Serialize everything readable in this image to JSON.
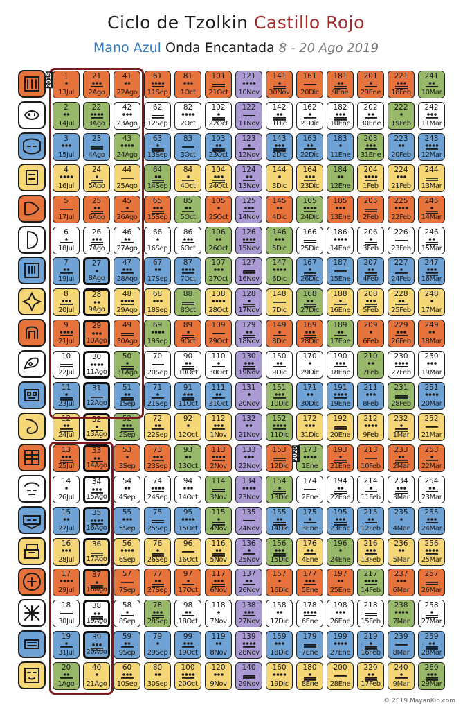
{
  "header": {
    "title_black": "Ciclo de Tzolkin",
    "title_red": "Castillo Rojo",
    "subtitle_blue": "Mano Azul",
    "subtitle_black": "Onda Encantada",
    "subtitle_dates": "8 - 20 Ago 2019"
  },
  "colors": {
    "red": "#e6733c",
    "white": "#ffffff",
    "blue": "#6fa3d6",
    "yellow": "#f6d777",
    "green": "#98b96a",
    "purple": "#a99ad3",
    "frame": "#7a1a1f"
  },
  "seals": [
    {
      "name": "Dragón",
      "color": "red",
      "icon": "dragon-icon"
    },
    {
      "name": "Viento",
      "color": "white",
      "icon": "wind-icon"
    },
    {
      "name": "Noche",
      "color": "blue",
      "icon": "night-icon"
    },
    {
      "name": "Semilla",
      "color": "yellow",
      "icon": "seed-icon"
    },
    {
      "name": "Serpiente",
      "color": "red",
      "icon": "serpent-icon"
    },
    {
      "name": "Enlazador",
      "color": "white",
      "icon": "worldbridger-icon"
    },
    {
      "name": "Mano",
      "color": "blue",
      "icon": "hand-icon"
    },
    {
      "name": "Estrella",
      "color": "yellow",
      "icon": "star-icon"
    },
    {
      "name": "Luna",
      "color": "red",
      "icon": "moon-icon"
    },
    {
      "name": "Perro",
      "color": "white",
      "icon": "dog-icon"
    },
    {
      "name": "Mono",
      "color": "blue",
      "icon": "monkey-icon"
    },
    {
      "name": "Humano",
      "color": "yellow",
      "icon": "human-icon"
    },
    {
      "name": "Caminante",
      "color": "red",
      "icon": "skywalker-icon"
    },
    {
      "name": "Mago",
      "color": "white",
      "icon": "wizard-icon"
    },
    {
      "name": "Águila",
      "color": "blue",
      "icon": "eagle-icon"
    },
    {
      "name": "Guerrero",
      "color": "yellow",
      "icon": "warrior-icon"
    },
    {
      "name": "Tierra",
      "color": "red",
      "icon": "earth-icon"
    },
    {
      "name": "Espejo",
      "color": "white",
      "icon": "mirror-icon"
    },
    {
      "name": "Tormenta",
      "color": "blue",
      "icon": "storm-icon"
    },
    {
      "name": "Sol",
      "color": "yellow",
      "icon": "sun-icon"
    }
  ],
  "column_colors": [
    [
      "seal",
      "green",
      "seal",
      "seal",
      "seal",
      "seal",
      "seal",
      "seal",
      "seal",
      "seal",
      "seal",
      "seal",
      "seal",
      "seal",
      "seal",
      "seal",
      "seal",
      "seal",
      "seal",
      "green"
    ],
    [
      "seal",
      "green",
      "seal",
      "seal",
      "seal",
      "seal",
      "seal",
      "seal",
      "seal",
      "seal",
      "seal",
      "seal",
      "seal",
      "seal",
      "seal",
      "seal",
      "seal",
      "seal",
      "seal",
      "seal"
    ],
    [
      "seal",
      "seal",
      "green",
      "seal",
      "seal",
      "seal",
      "seal",
      "seal",
      "seal",
      "green",
      "seal",
      "green",
      "seal",
      "seal",
      "seal",
      "seal",
      "seal",
      "seal",
      "seal",
      "seal"
    ],
    [
      "seal",
      "seal",
      "seal",
      "green",
      "seal",
      "seal",
      "seal",
      "seal",
      "green",
      "seal",
      "seal",
      "seal",
      "seal",
      "seal",
      "seal",
      "seal",
      "seal",
      "green",
      "seal",
      "seal"
    ],
    [
      "seal",
      "seal",
      "seal",
      "seal",
      "green",
      "seal",
      "seal",
      "green",
      "seal",
      "seal",
      "seal",
      "seal",
      "green",
      "seal",
      "seal",
      "seal",
      "seal",
      "seal",
      "seal",
      "seal"
    ],
    [
      "seal",
      "seal",
      "seal",
      "seal",
      "seal",
      "green",
      "green",
      "seal",
      "seal",
      "seal",
      "seal",
      "seal",
      "seal",
      "green",
      "green",
      "seal",
      "seal",
      "seal",
      "seal",
      "seal"
    ],
    [
      "purple",
      "purple",
      "purple",
      "purple",
      "purple",
      "purple",
      "purple",
      "purple",
      "purple",
      "purple",
      "purple",
      "purple",
      "purple",
      "purple",
      "purple",
      "purple",
      "purple",
      "purple",
      "purple",
      "purple"
    ],
    [
      "seal",
      "seal",
      "seal",
      "seal",
      "seal",
      "green",
      "green",
      "seal",
      "seal",
      "seal",
      "green",
      "green",
      "seal",
      "green",
      "seal",
      "green",
      "seal",
      "seal",
      "seal",
      "seal"
    ],
    [
      "seal",
      "seal",
      "seal",
      "seal",
      "green",
      "seal",
      "seal",
      "green",
      "seal",
      "seal",
      "seal",
      "seal",
      "green",
      "seal",
      "seal",
      "seal",
      "seal",
      "seal",
      "seal",
      "seal"
    ],
    [
      "seal",
      "seal",
      "seal",
      "green",
      "seal",
      "seal",
      "seal",
      "seal",
      "green",
      "seal",
      "seal",
      "seal",
      "seal",
      "seal",
      "seal",
      "green",
      "seal",
      "seal",
      "seal",
      "seal"
    ],
    [
      "seal",
      "seal",
      "green",
      "seal",
      "seal",
      "seal",
      "seal",
      "seal",
      "seal",
      "green",
      "seal",
      "seal",
      "seal",
      "seal",
      "seal",
      "seal",
      "green",
      "seal",
      "seal",
      "seal"
    ],
    [
      "seal",
      "green",
      "seal",
      "seal",
      "seal",
      "seal",
      "seal",
      "seal",
      "seal",
      "seal",
      "green",
      "seal",
      "seal",
      "seal",
      "seal",
      "seal",
      "seal",
      "green",
      "seal",
      "seal"
    ],
    [
      "green",
      "seal",
      "seal",
      "seal",
      "seal",
      "seal",
      "seal",
      "seal",
      "seal",
      "seal",
      "seal",
      "seal",
      "seal",
      "seal",
      "seal",
      "seal",
      "seal",
      "seal",
      "seal",
      "green"
    ]
  ],
  "dates": [
    [
      "13Jul",
      "14Jul",
      "15Jul",
      "16Jul",
      "17Jul",
      "18Jul",
      "19Jul",
      "20Jul",
      "21Jul",
      "22Jul",
      "23Jul",
      "24Jul",
      "25Jul",
      "26Jul",
      "27Jul",
      "28Jul",
      "29Jul",
      "30Jul",
      "31Jul",
      "1Ago"
    ],
    [
      "2Ago",
      "3Ago",
      "4Ago",
      "5Ago",
      "6Ago",
      "7Ago",
      "8Ago",
      "9Ago",
      "10Ago",
      "11Ago",
      "12Ago",
      "13Ago",
      "14Ago",
      "15Ago",
      "16Ago",
      "17Ago",
      "18Ago",
      "19Ago",
      "20Ago",
      "21Ago"
    ],
    [
      "22Ago",
      "23Ago",
      "24Ago",
      "25Ago",
      "26Ago",
      "27Ago",
      "28Ago",
      "29Ago",
      "30Ago",
      "31Ago",
      "1Sep",
      "2Sep",
      "3Sep",
      "4Sep",
      "5Sep",
      "6Sep",
      "7Sep",
      "8Sep",
      "9Sep",
      "10Sep"
    ],
    [
      "11Sep",
      "12Sep",
      "13Sep",
      "14Sep",
      "15Sep",
      "16Sep",
      "17Sep",
      "18Sep",
      "19Sep",
      "20Sep",
      "21Sep",
      "22Sep",
      "23Sep",
      "24Sep",
      "25Sep",
      "26Sep",
      "27Sep",
      "28Sep",
      "29Sep",
      "30Sep"
    ],
    [
      "1Oct",
      "2Oct",
      "3Oct",
      "4Oct",
      "5Oct",
      "6Oct",
      "7Oct",
      "8Oct",
      "9Oct",
      "10Oct",
      "11Oct",
      "12Oct",
      "13Oct",
      "14Oct",
      "15Oct",
      "16Oct",
      "17Oct",
      "18Oct",
      "19Oct",
      "20Oct"
    ],
    [
      "21Oct",
      "22Oct",
      "23Oct",
      "24Oct",
      "25Oct",
      "26Oct",
      "27Oct",
      "28Oct",
      "29Oct",
      "30Oct",
      "31Oct",
      "1Nov",
      "2Nov",
      "3Nov",
      "4Nov",
      "5Nov",
      "6Nov",
      "7Nov",
      "8Nov",
      "9Nov"
    ],
    [
      "10Nov",
      "11Nov",
      "12Nov",
      "13Nov",
      "14Nov",
      "15Nov",
      "16Nov",
      "17Nov",
      "18Nov",
      "19Nov",
      "20Nov",
      "21Nov",
      "22Nov",
      "23Nov",
      "24Nov",
      "25Nov",
      "26Nov",
      "27Nov",
      "28Nov",
      "29Nov"
    ],
    [
      "30Nov",
      "1Dic",
      "2Dic",
      "3Dic",
      "4Dic",
      "5Dic",
      "6Dic",
      "7Dic",
      "8Dic",
      "9Dic",
      "10Dic",
      "11Dic",
      "12Dic",
      "13Dic",
      "14Dic",
      "15Dic",
      "16Dic",
      "17Dic",
      "18Dic",
      "19Dic"
    ],
    [
      "20Dic",
      "21Dic",
      "22Dic",
      "23Dic",
      "24Dic",
      "25Dic",
      "26Dic",
      "27Dic",
      "28Dic",
      "29Dic",
      "30Dic",
      "31Dic",
      "1Ene",
      "2Ene",
      "3Ene",
      "4Ene",
      "5Ene",
      "6Ene",
      "7Ene",
      "8Ene"
    ],
    [
      "9Ene",
      "10Ene",
      "11Ene",
      "12Ene",
      "13Ene",
      "14Ene",
      "15Ene",
      "16Ene",
      "17Ene",
      "18Ene",
      "19Ene",
      "20Ene",
      "21Ene",
      "22Ene",
      "23Ene",
      "24Ene",
      "25Ene",
      "26Ene",
      "27Ene",
      "28Ene"
    ],
    [
      "29Ene",
      "30Ene",
      "31Ene",
      "1Feb",
      "2Feb",
      "3Feb",
      "4Feb",
      "5Feb",
      "6Feb",
      "7Feb",
      "8Feb",
      "9Feb",
      "10Feb",
      "11Feb",
      "12Feb",
      "13Feb",
      "14Feb",
      "15Feb",
      "16Feb",
      "17Feb"
    ],
    [
      "18Feb",
      "19Feb",
      "20Feb",
      "21Feb",
      "22Feb",
      "23Feb",
      "24Feb",
      "25Feb",
      "26Feb",
      "27Feb",
      "28Feb",
      "1Mar",
      "2Mar",
      "3Mar",
      "4Mar",
      "5Mar",
      "6Mar",
      "7Mar",
      "8Mar",
      "9Mar"
    ],
    [
      "10Mar",
      "11Mar",
      "12Mar",
      "13Mar",
      "14Mar",
      "15Mar",
      "16Mar",
      "17Mar",
      "18Mar",
      "19Mar",
      "20Mar",
      "21Mar",
      "22Mar",
      "23Mar",
      "24Mar",
      "25Mar",
      "26Mar",
      "27Mar",
      "28Mar",
      "29Mar"
    ]
  ],
  "highlight_kins": [
    27,
    28,
    29,
    30,
    31,
    32,
    33,
    34,
    35,
    36,
    37,
    38,
    39
  ],
  "year_tags": {
    "year_2019": "2019",
    "year_2020": "2020"
  },
  "copyright": "© 2019 MayanKin.com"
}
